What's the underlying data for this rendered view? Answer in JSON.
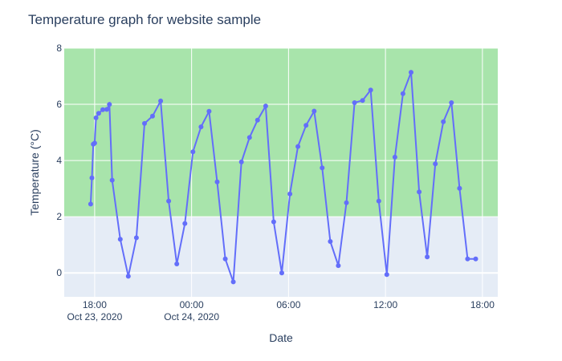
{
  "chart_data": {
    "type": "line",
    "title": "Temperature graph for website sample",
    "xlabel": "Date",
    "ylabel": "Temperature (°C)",
    "ylim": [
      -0.85,
      8
    ],
    "xlim": [
      "2020-10-23T16:07",
      "2020-10-24T18:57"
    ],
    "grid": true,
    "colors": {
      "plot_background": "#e5ecf6",
      "band_fill": "#a8e4ab",
      "line": "#636efa",
      "grid": "#ffffff",
      "text": "#2a3f5f"
    },
    "band": {
      "y_from": 2,
      "y_to": 8
    },
    "y_ticks": [
      {
        "value": 0,
        "label": "0"
      },
      {
        "value": 2,
        "label": "2"
      },
      {
        "value": 4,
        "label": "4"
      },
      {
        "value": 6,
        "label": "6"
      },
      {
        "value": 8,
        "label": "8"
      }
    ],
    "x_ticks": [
      {
        "value": "2020-10-23T18:00",
        "label": "18:00",
        "sublabel": "Oct 23, 2020"
      },
      {
        "value": "2020-10-24T00:00",
        "label": "00:00",
        "sublabel": "Oct 24, 2020"
      },
      {
        "value": "2020-10-24T06:00",
        "label": "06:00",
        "sublabel": ""
      },
      {
        "value": "2020-10-24T12:00",
        "label": "12:00",
        "sublabel": ""
      },
      {
        "value": "2020-10-24T18:00",
        "label": "18:00",
        "sublabel": ""
      }
    ],
    "series": [
      {
        "x": [
          "2020-10-23T17:45",
          "2020-10-23T17:50",
          "2020-10-23T17:55",
          "2020-10-23T18:00",
          "2020-10-23T18:05",
          "2020-10-23T18:15",
          "2020-10-23T18:30",
          "2020-10-23T18:45",
          "2020-10-23T18:55",
          "2020-10-23T19:05",
          "2020-10-23T19:35",
          "2020-10-23T20:05",
          "2020-10-23T20:35",
          "2020-10-23T21:05",
          "2020-10-23T21:35",
          "2020-10-23T22:05",
          "2020-10-23T22:35",
          "2020-10-23T23:05",
          "2020-10-23T23:35",
          "2020-10-24T00:05",
          "2020-10-24T00:35",
          "2020-10-24T01:05",
          "2020-10-24T01:35",
          "2020-10-24T02:05",
          "2020-10-24T02:35",
          "2020-10-24T03:05",
          "2020-10-24T03:35",
          "2020-10-24T04:05",
          "2020-10-24T04:35",
          "2020-10-24T05:05",
          "2020-10-24T05:35",
          "2020-10-24T06:05",
          "2020-10-24T06:35",
          "2020-10-24T07:05",
          "2020-10-24T07:35",
          "2020-10-24T08:05",
          "2020-10-24T08:35",
          "2020-10-24T09:05",
          "2020-10-24T09:35",
          "2020-10-24T10:05",
          "2020-10-24T10:35",
          "2020-10-24T11:05",
          "2020-10-24T11:35",
          "2020-10-24T12:05",
          "2020-10-24T12:35",
          "2020-10-24T13:05",
          "2020-10-24T13:35",
          "2020-10-24T14:05",
          "2020-10-24T14:35",
          "2020-10-24T15:05",
          "2020-10-24T15:35",
          "2020-10-24T16:05",
          "2020-10-24T16:35",
          "2020-10-24T17:05",
          "2020-10-24T17:35"
        ],
        "y": [
          2.45,
          3.38,
          4.58,
          4.62,
          5.52,
          5.68,
          5.81,
          5.82,
          6.0,
          3.3,
          1.2,
          -0.12,
          1.25,
          5.32,
          5.58,
          6.12,
          2.56,
          0.32,
          1.76,
          4.31,
          5.2,
          5.75,
          3.24,
          0.5,
          -0.32,
          3.95,
          4.82,
          5.44,
          5.94,
          1.82,
          0.0,
          2.81,
          4.5,
          5.25,
          5.76,
          3.74,
          1.12,
          0.26,
          2.5,
          6.06,
          6.14,
          6.51,
          2.56,
          -0.06,
          4.12,
          6.38,
          7.14,
          2.88,
          0.57,
          3.88,
          5.38,
          6.06,
          3.01,
          0.5,
          0.5
        ]
      }
    ]
  }
}
